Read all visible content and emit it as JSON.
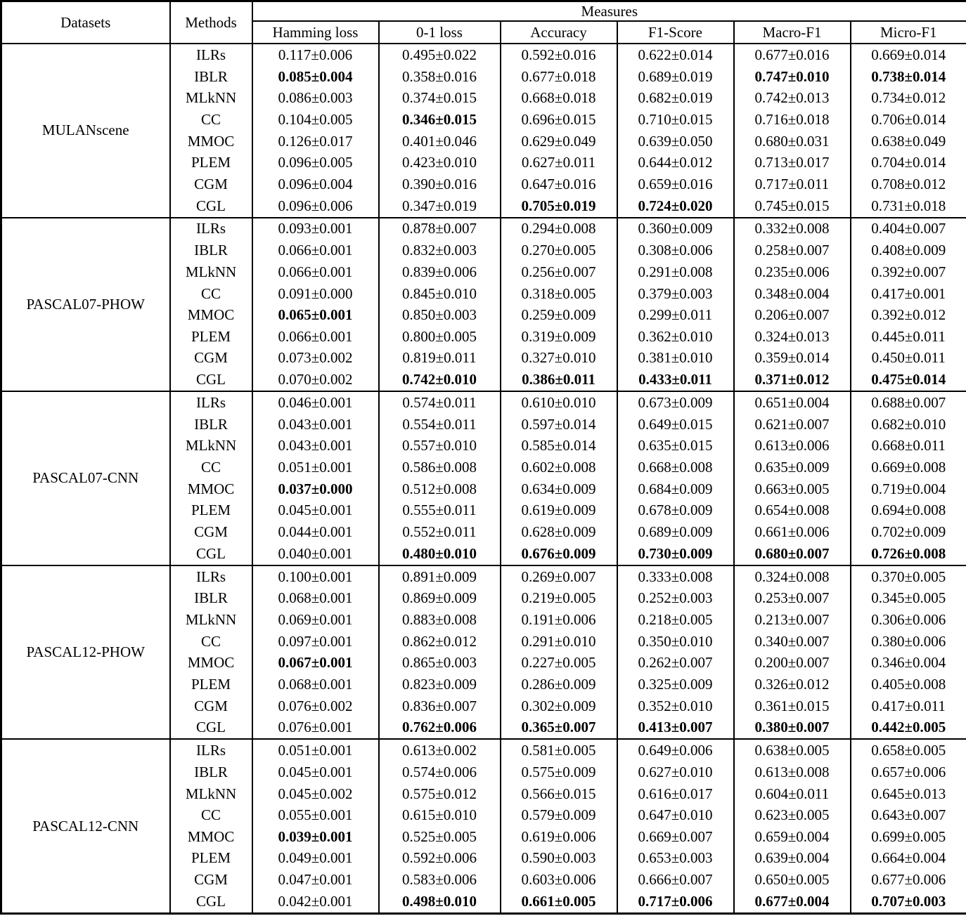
{
  "table": {
    "header": {
      "datasets": "Datasets",
      "methods": "Methods",
      "measures": "Measures",
      "measure_columns": [
        "Hamming loss",
        "0-1 loss",
        "Accuracy",
        "F1-Score",
        "Macro-F1",
        "Micro-F1"
      ]
    },
    "blocks": [
      {
        "dataset": "MULANscene",
        "rows": [
          {
            "method": "ILRs",
            "values": [
              "0.117±0.006",
              "0.495±0.022",
              "0.592±0.016",
              "0.622±0.014",
              "0.677±0.016",
              "0.669±0.014"
            ],
            "bold_columns": []
          },
          {
            "method": "IBLR",
            "values": [
              "0.085±0.004",
              "0.358±0.016",
              "0.677±0.018",
              "0.689±0.019",
              "0.747±0.010",
              "0.738±0.014"
            ],
            "bold_columns": [
              0,
              4,
              5
            ]
          },
          {
            "method": "MLkNN",
            "values": [
              "0.086±0.003",
              "0.374±0.015",
              "0.668±0.018",
              "0.682±0.019",
              "0.742±0.013",
              "0.734±0.012"
            ],
            "bold_columns": []
          },
          {
            "method": "CC",
            "values": [
              "0.104±0.005",
              "0.346±0.015",
              "0.696±0.015",
              "0.710±0.015",
              "0.716±0.018",
              "0.706±0.014"
            ],
            "bold_columns": [
              1
            ]
          },
          {
            "method": "MMOC",
            "values": [
              "0.126±0.017",
              "0.401±0.046",
              "0.629±0.049",
              "0.639±0.050",
              "0.680±0.031",
              "0.638±0.049"
            ],
            "bold_columns": []
          },
          {
            "method": "PLEM",
            "values": [
              "0.096±0.005",
              "0.423±0.010",
              "0.627±0.011",
              "0.644±0.012",
              "0.713±0.017",
              "0.704±0.014"
            ],
            "bold_columns": []
          },
          {
            "method": "CGM",
            "values": [
              "0.096±0.004",
              "0.390±0.016",
              "0.647±0.016",
              "0.659±0.016",
              "0.717±0.011",
              "0.708±0.012"
            ],
            "bold_columns": []
          },
          {
            "method": "CGL",
            "values": [
              "0.096±0.006",
              "0.347±0.019",
              "0.705±0.019",
              "0.724±0.020",
              "0.745±0.015",
              "0.731±0.018"
            ],
            "bold_columns": [
              2,
              3
            ]
          }
        ]
      },
      {
        "dataset": "PASCAL07-PHOW",
        "rows": [
          {
            "method": "ILRs",
            "values": [
              "0.093±0.001",
              "0.878±0.007",
              "0.294±0.008",
              "0.360±0.009",
              "0.332±0.008",
              "0.404±0.007"
            ],
            "bold_columns": []
          },
          {
            "method": "IBLR",
            "values": [
              "0.066±0.001",
              "0.832±0.003",
              "0.270±0.005",
              "0.308±0.006",
              "0.258±0.007",
              "0.408±0.009"
            ],
            "bold_columns": []
          },
          {
            "method": "MLkNN",
            "values": [
              "0.066±0.001",
              "0.839±0.006",
              "0.256±0.007",
              "0.291±0.008",
              "0.235±0.006",
              "0.392±0.007"
            ],
            "bold_columns": []
          },
          {
            "method": "CC",
            "values": [
              "0.091±0.000",
              "0.845±0.010",
              "0.318±0.005",
              "0.379±0.003",
              "0.348±0.004",
              "0.417±0.001"
            ],
            "bold_columns": []
          },
          {
            "method": "MMOC",
            "values": [
              "0.065±0.001",
              "0.850±0.003",
              "0.259±0.009",
              "0.299±0.011",
              "0.206±0.007",
              "0.392±0.012"
            ],
            "bold_columns": [
              0
            ]
          },
          {
            "method": "PLEM",
            "values": [
              "0.066±0.001",
              "0.800±0.005",
              "0.319±0.009",
              "0.362±0.010",
              "0.324±0.013",
              "0.445±0.011"
            ],
            "bold_columns": []
          },
          {
            "method": "CGM",
            "values": [
              "0.073±0.002",
              "0.819±0.011",
              "0.327±0.010",
              "0.381±0.010",
              "0.359±0.014",
              "0.450±0.011"
            ],
            "bold_columns": []
          },
          {
            "method": "CGL",
            "values": [
              "0.070±0.002",
              "0.742±0.010",
              "0.386±0.011",
              "0.433±0.011",
              "0.371±0.012",
              "0.475±0.014"
            ],
            "bold_columns": [
              1,
              2,
              3,
              4,
              5
            ]
          }
        ]
      },
      {
        "dataset": "PASCAL07-CNN",
        "rows": [
          {
            "method": "ILRs",
            "values": [
              "0.046±0.001",
              "0.574±0.011",
              "0.610±0.010",
              "0.673±0.009",
              "0.651±0.004",
              "0.688±0.007"
            ],
            "bold_columns": []
          },
          {
            "method": "IBLR",
            "values": [
              "0.043±0.001",
              "0.554±0.011",
              "0.597±0.014",
              "0.649±0.015",
              "0.621±0.007",
              "0.682±0.010"
            ],
            "bold_columns": []
          },
          {
            "method": "MLkNN",
            "values": [
              "0.043±0.001",
              "0.557±0.010",
              "0.585±0.014",
              "0.635±0.015",
              "0.613±0.006",
              "0.668±0.011"
            ],
            "bold_columns": []
          },
          {
            "method": "CC",
            "values": [
              "0.051±0.001",
              "0.586±0.008",
              "0.602±0.008",
              "0.668±0.008",
              "0.635±0.009",
              "0.669±0.008"
            ],
            "bold_columns": []
          },
          {
            "method": "MMOC",
            "values": [
              "0.037±0.000",
              "0.512±0.008",
              "0.634±0.009",
              "0.684±0.009",
              "0.663±0.005",
              "0.719±0.004"
            ],
            "bold_columns": [
              0
            ]
          },
          {
            "method": "PLEM",
            "values": [
              "0.045±0.001",
              "0.555±0.011",
              "0.619±0.009",
              "0.678±0.009",
              "0.654±0.008",
              "0.694±0.008"
            ],
            "bold_columns": []
          },
          {
            "method": "CGM",
            "values": [
              "0.044±0.001",
              "0.552±0.011",
              "0.628±0.009",
              "0.689±0.009",
              "0.661±0.006",
              "0.702±0.009"
            ],
            "bold_columns": []
          },
          {
            "method": "CGL",
            "values": [
              "0.040±0.001",
              "0.480±0.010",
              "0.676±0.009",
              "0.730±0.009",
              "0.680±0.007",
              "0.726±0.008"
            ],
            "bold_columns": [
              1,
              2,
              3,
              4,
              5
            ]
          }
        ]
      },
      {
        "dataset": "PASCAL12-PHOW",
        "rows": [
          {
            "method": "ILRs",
            "values": [
              "0.100±0.001",
              "0.891±0.009",
              "0.269±0.007",
              "0.333±0.008",
              "0.324±0.008",
              "0.370±0.005"
            ],
            "bold_columns": []
          },
          {
            "method": "IBLR",
            "values": [
              "0.068±0.001",
              "0.869±0.009",
              "0.219±0.005",
              "0.252±0.003",
              "0.253±0.007",
              "0.345±0.005"
            ],
            "bold_columns": []
          },
          {
            "method": "MLkNN",
            "values": [
              "0.069±0.001",
              "0.883±0.008",
              "0.191±0.006",
              "0.218±0.005",
              "0.213±0.007",
              "0.306±0.006"
            ],
            "bold_columns": []
          },
          {
            "method": "CC",
            "values": [
              "0.097±0.001",
              "0.862±0.012",
              "0.291±0.010",
              "0.350±0.010",
              "0.340±0.007",
              "0.380±0.006"
            ],
            "bold_columns": []
          },
          {
            "method": "MMOC",
            "values": [
              "0.067±0.001",
              "0.865±0.003",
              "0.227±0.005",
              "0.262±0.007",
              "0.200±0.007",
              "0.346±0.004"
            ],
            "bold_columns": [
              0
            ]
          },
          {
            "method": "PLEM",
            "values": [
              "0.068±0.001",
              "0.823±0.009",
              "0.286±0.009",
              "0.325±0.009",
              "0.326±0.012",
              "0.405±0.008"
            ],
            "bold_columns": []
          },
          {
            "method": "CGM",
            "values": [
              "0.076±0.002",
              "0.836±0.007",
              "0.302±0.009",
              "0.352±0.010",
              "0.361±0.015",
              "0.417±0.011"
            ],
            "bold_columns": []
          },
          {
            "method": "CGL",
            "values": [
              "0.076±0.001",
              "0.762±0.006",
              "0.365±0.007",
              "0.413±0.007",
              "0.380±0.007",
              "0.442±0.005"
            ],
            "bold_columns": [
              1,
              2,
              3,
              4,
              5
            ]
          }
        ]
      },
      {
        "dataset": "PASCAL12-CNN",
        "rows": [
          {
            "method": "ILRs",
            "values": [
              "0.051±0.001",
              "0.613±0.002",
              "0.581±0.005",
              "0.649±0.006",
              "0.638±0.005",
              "0.658±0.005"
            ],
            "bold_columns": []
          },
          {
            "method": "IBLR",
            "values": [
              "0.045±0.001",
              "0.574±0.006",
              "0.575±0.009",
              "0.627±0.010",
              "0.613±0.008",
              "0.657±0.006"
            ],
            "bold_columns": []
          },
          {
            "method": "MLkNN",
            "values": [
              "0.045±0.002",
              "0.575±0.012",
              "0.566±0.015",
              "0.616±0.017",
              "0.604±0.011",
              "0.645±0.013"
            ],
            "bold_columns": []
          },
          {
            "method": "CC",
            "values": [
              "0.055±0.001",
              "0.615±0.010",
              "0.579±0.009",
              "0.647±0.010",
              "0.623±0.005",
              "0.643±0.007"
            ],
            "bold_columns": []
          },
          {
            "method": "MMOC",
            "values": [
              "0.039±0.001",
              "0.525±0.005",
              "0.619±0.006",
              "0.669±0.007",
              "0.659±0.004",
              "0.699±0.005"
            ],
            "bold_columns": [
              0
            ]
          },
          {
            "method": "PLEM",
            "values": [
              "0.049±0.001",
              "0.592±0.006",
              "0.590±0.003",
              "0.653±0.003",
              "0.639±0.004",
              "0.664±0.004"
            ],
            "bold_columns": []
          },
          {
            "method": "CGM",
            "values": [
              "0.047±0.001",
              "0.583±0.006",
              "0.603±0.006",
              "0.666±0.007",
              "0.650±0.005",
              "0.677±0.006"
            ],
            "bold_columns": []
          },
          {
            "method": "CGL",
            "values": [
              "0.042±0.001",
              "0.498±0.010",
              "0.661±0.005",
              "0.717±0.006",
              "0.677±0.004",
              "0.707±0.003"
            ],
            "bold_columns": [
              1,
              2,
              3,
              4,
              5
            ]
          }
        ]
      }
    ]
  }
}
